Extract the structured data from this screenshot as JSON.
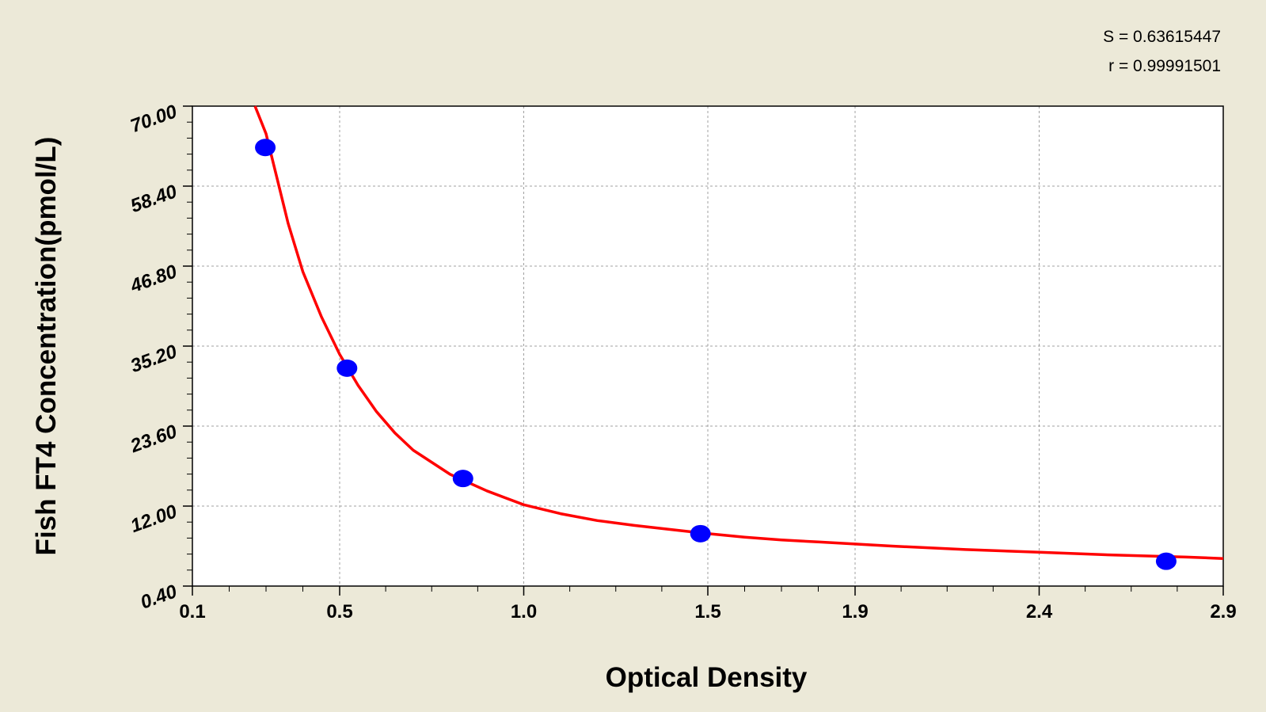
{
  "chart_data": {
    "type": "scatter",
    "title": "",
    "xlabel": "Optical Density",
    "ylabel": "Fish FT4 Concentration(pmol/L)",
    "xlim": [
      0.1,
      2.9
    ],
    "ylim": [
      0.4,
      70.0
    ],
    "x_ticks": [
      "0.1",
      "0.5",
      "1.0",
      "1.5",
      "1.9",
      "2.4",
      "2.9"
    ],
    "y_ticks": [
      "0.40",
      "12.00",
      "23.60",
      "35.20",
      "46.80",
      "58.40",
      "70.00"
    ],
    "grid": true,
    "stats": [
      "S = 0.63615447",
      "r = 0.99991501"
    ],
    "colors": {
      "points": "#0000ff",
      "curve": "#ff0000",
      "background": "#ece9d8",
      "plot": "#ffffff"
    },
    "series": [
      {
        "type": "scatter",
        "x": [
          0.298,
          0.52,
          0.835,
          1.48,
          2.745
        ],
        "y": [
          64,
          32,
          16,
          8,
          4
        ]
      },
      {
        "type": "line",
        "x": [
          0.27,
          0.3,
          0.33,
          0.36,
          0.4,
          0.45,
          0.5,
          0.55,
          0.6,
          0.65,
          0.7,
          0.8,
          0.9,
          1.0,
          1.1,
          1.2,
          1.3,
          1.4,
          1.5,
          1.6,
          1.7,
          1.8,
          1.9,
          2.0,
          2.2,
          2.4,
          2.6,
          2.8,
          2.9
        ],
        "y": [
          70,
          66,
          59.5,
          53,
          46,
          39.5,
          34,
          29.5,
          25.7,
          22.6,
          20.1,
          16.6,
          14.2,
          12.2,
          10.9,
          9.9,
          9.2,
          8.6,
          8.0,
          7.5,
          7.1,
          6.8,
          6.5,
          6.2,
          5.7,
          5.3,
          4.9,
          4.6,
          4.4
        ]
      }
    ]
  }
}
